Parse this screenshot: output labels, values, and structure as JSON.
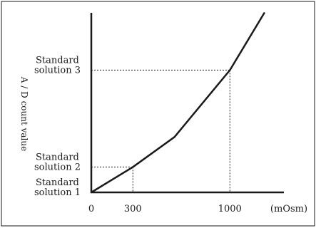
{
  "chart_data": {
    "type": "line",
    "title": "",
    "xlabel": "",
    "ylabel": "A / D count value",
    "x_unit": "(mOsm)",
    "xlim": [
      0,
      1400
    ],
    "ylim": [
      0,
      4
    ],
    "y_is_relative": true,
    "x_ticks": [
      {
        "value": 0,
        "label": "0"
      },
      {
        "value": 300,
        "label": "300"
      },
      {
        "value": 1000,
        "label": "1000"
      }
    ],
    "y_ticks": [
      {
        "value": 0,
        "label_lines": [
          "Standard",
          "solution 1"
        ]
      },
      {
        "value": 0.55,
        "label_lines": [
          "Standard",
          "solution 2"
        ]
      },
      {
        "value": 2.65,
        "label_lines": [
          "Standard",
          "solution 3"
        ]
      }
    ],
    "series": [
      {
        "x": [
          0,
          300,
          600,
          1000,
          1250
        ],
        "y": [
          0,
          0.55,
          1.2,
          2.65,
          3.9
        ]
      }
    ],
    "reference_lines": [
      {
        "x": 300,
        "y": 0.55
      },
      {
        "x": 1000,
        "y": 2.65
      }
    ],
    "grid": false,
    "legend": "none"
  }
}
